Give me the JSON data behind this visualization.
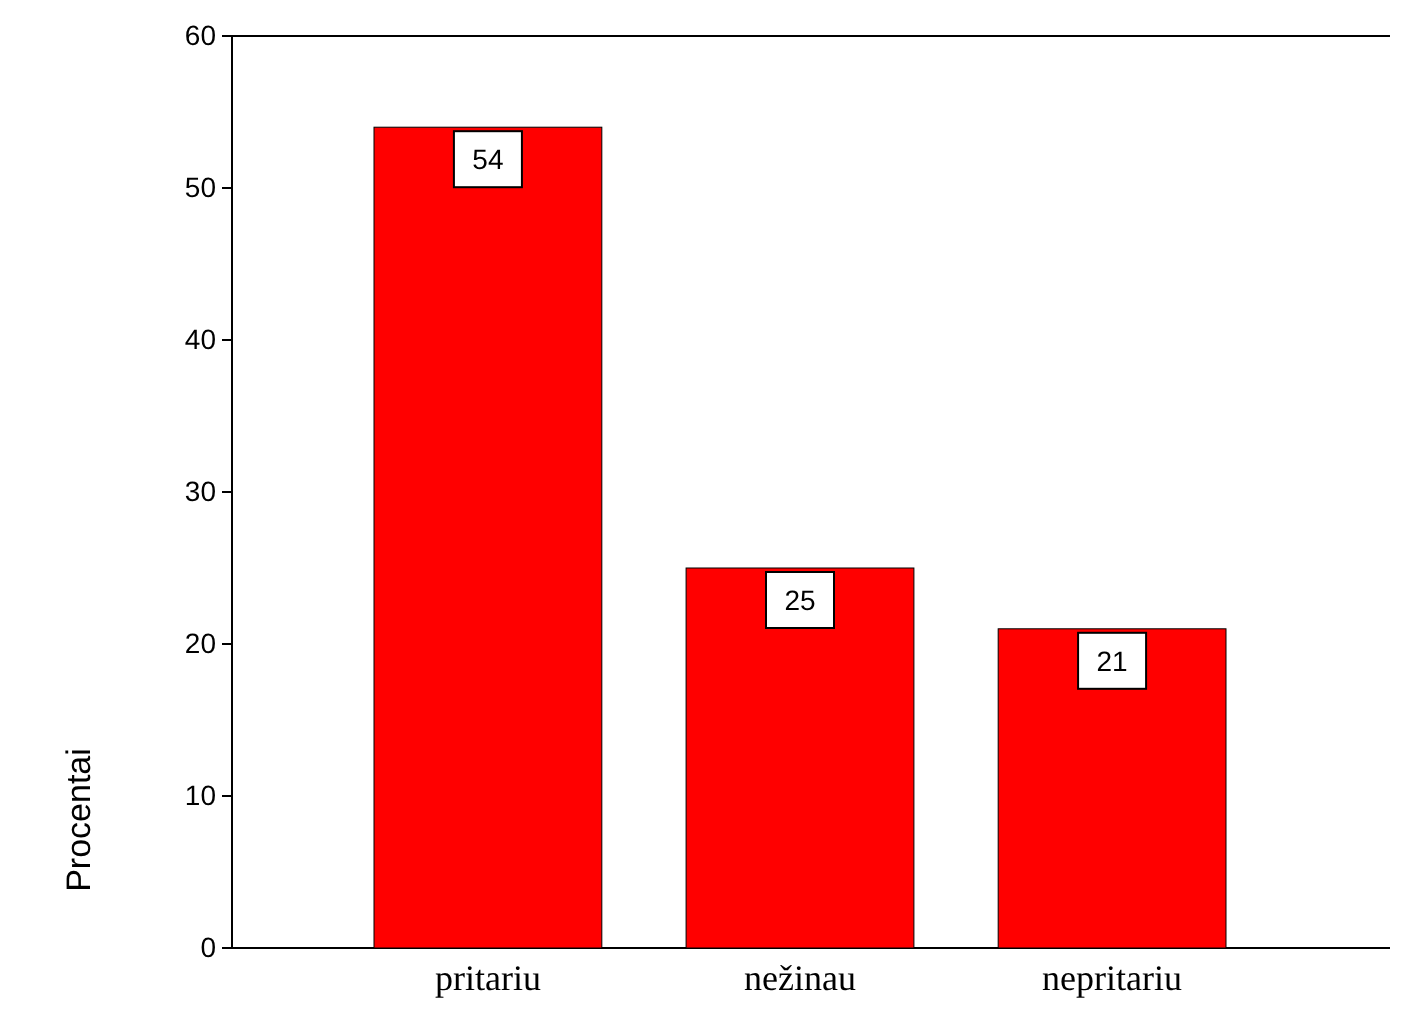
{
  "chart_data": {
    "type": "bar",
    "ylabel": "Procentai",
    "categories": [
      "pritariu",
      "nežinau",
      "nepritariu"
    ],
    "values": [
      54,
      25,
      21
    ],
    "color": "#ff0000",
    "ylim": [
      0,
      60
    ],
    "yticks": [
      0,
      10,
      20,
      30,
      40,
      50,
      60
    ],
    "data_labels": true
  }
}
